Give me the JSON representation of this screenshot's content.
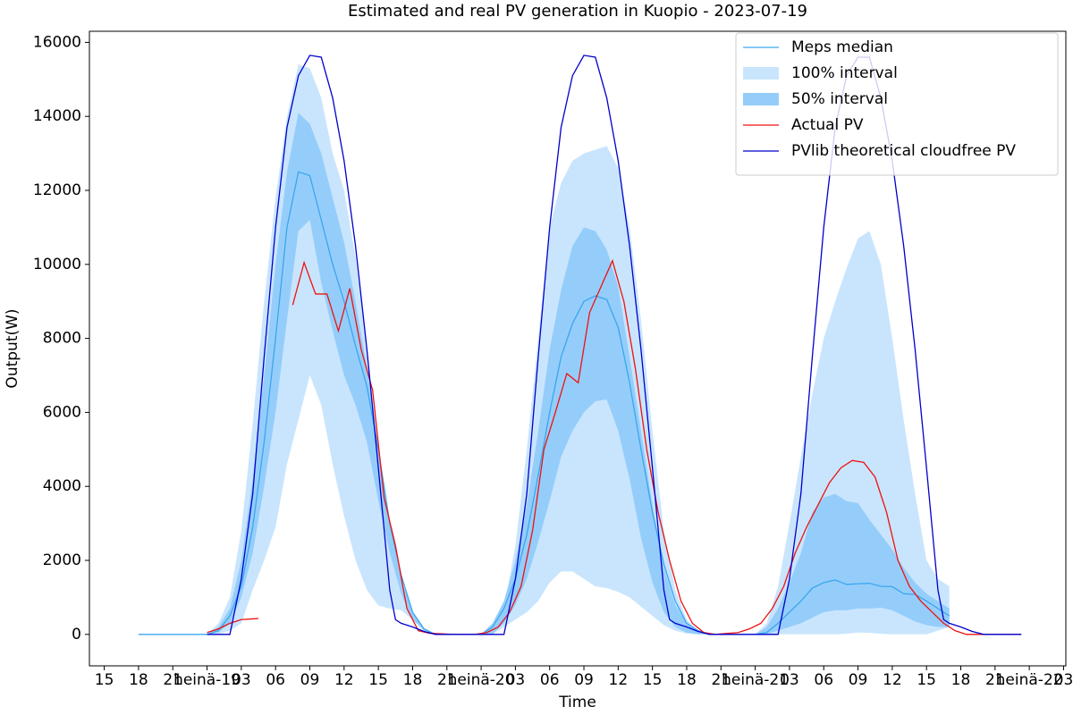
{
  "chart_data": {
    "type": "line",
    "title": "Estimated and real PV generation in Kuopio - 2023-07-19",
    "x_label": "Time",
    "y_label": "Output(W)",
    "xlim": [
      -10.3,
      75.2
    ],
    "ylim": [
      -850,
      16300
    ],
    "yticks": [
      0,
      2000,
      4000,
      6000,
      8000,
      10000,
      12000,
      14000,
      16000
    ],
    "xticks": [
      {
        "value": -9,
        "label": "15"
      },
      {
        "value": -6,
        "label": "18"
      },
      {
        "value": -3,
        "label": "21"
      },
      {
        "value": 0,
        "label": "heinä-19"
      },
      {
        "value": 3,
        "label": "03"
      },
      {
        "value": 6,
        "label": "06"
      },
      {
        "value": 9,
        "label": "09"
      },
      {
        "value": 12,
        "label": "12"
      },
      {
        "value": 15,
        "label": "15"
      },
      {
        "value": 18,
        "label": "18"
      },
      {
        "value": 21,
        "label": "21"
      },
      {
        "value": 24,
        "label": "heinä-20"
      },
      {
        "value": 27,
        "label": "03"
      },
      {
        "value": 30,
        "label": "06"
      },
      {
        "value": 33,
        "label": "09"
      },
      {
        "value": 36,
        "label": "12"
      },
      {
        "value": 39,
        "label": "15"
      },
      {
        "value": 42,
        "label": "18"
      },
      {
        "value": 45,
        "label": "21"
      },
      {
        "value": 48,
        "label": "heinä-21"
      },
      {
        "value": 51,
        "label": "03"
      },
      {
        "value": 54,
        "label": "06"
      },
      {
        "value": 57,
        "label": "09"
      },
      {
        "value": 60,
        "label": "12"
      },
      {
        "value": 63,
        "label": "15"
      },
      {
        "value": 66,
        "label": "18"
      },
      {
        "value": 69,
        "label": "21"
      },
      {
        "value": 72,
        "label": "heinä-22"
      },
      {
        "value": 75,
        "label": "03"
      }
    ],
    "legend": "upper right",
    "x": [
      -6,
      -3,
      0,
      1,
      2,
      3,
      4,
      5,
      6,
      7,
      8,
      9,
      10,
      11,
      12,
      13,
      14,
      15,
      16,
      17,
      18,
      19,
      20,
      24,
      25,
      26,
      27,
      28,
      29,
      30,
      31,
      32,
      33,
      34,
      35,
      36,
      37,
      38,
      39,
      40,
      41,
      42,
      43,
      44,
      48,
      49,
      50,
      51,
      52,
      53,
      54,
      55,
      56,
      57,
      58,
      59,
      60,
      61,
      62,
      63,
      64,
      65
    ],
    "series": [
      {
        "name": "Meps median",
        "type": "line",
        "color": "#3aa6ee",
        "values": [
          0,
          0,
          0,
          100,
          500,
          1300,
          2900,
          5200,
          8000,
          11000,
          12500,
          12400,
          11200,
          10000,
          9000,
          7800,
          6700,
          5000,
          3000,
          1600,
          600,
          150,
          0,
          0,
          200,
          700,
          1500,
          2700,
          4300,
          6000,
          7500,
          8400,
          9000,
          9150,
          9050,
          8300,
          6800,
          5000,
          3300,
          1900,
          900,
          300,
          100,
          0,
          0,
          50,
          300,
          600,
          900,
          1250,
          1400,
          1470,
          1350,
          1370,
          1380,
          1300,
          1290,
          1100,
          1080,
          900,
          700,
          500
        ]
      },
      {
        "name": "100% interval",
        "type": "area",
        "color": "#c9e5fd",
        "low": [
          0,
          0,
          0,
          0,
          100,
          300,
          1200,
          2000,
          2900,
          4600,
          5800,
          7000,
          6200,
          4600,
          3200,
          2000,
          1200,
          780,
          700,
          650,
          400,
          100,
          0,
          0,
          0,
          200,
          400,
          600,
          900,
          1400,
          1700,
          1700,
          1500,
          1300,
          1250,
          1150,
          1000,
          750,
          500,
          250,
          100,
          20,
          0,
          0,
          0,
          0,
          0,
          0,
          0,
          0,
          0,
          0,
          20,
          50,
          40,
          20,
          0,
          0,
          0,
          0,
          100,
          200
        ],
        "high": [
          0,
          0,
          0,
          300,
          1000,
          2800,
          5700,
          9000,
          11800,
          14000,
          15400,
          15300,
          14500,
          13000,
          12000,
          10200,
          7800,
          5000,
          2800,
          1400,
          600,
          100,
          0,
          0,
          100,
          700,
          2400,
          5000,
          8000,
          11000,
          12200,
          12800,
          13000,
          13100,
          13200,
          12600,
          11000,
          8500,
          5500,
          2800,
          1200,
          400,
          100,
          0,
          0,
          300,
          1300,
          3000,
          4800,
          6500,
          8000,
          9000,
          9900,
          10700,
          10900,
          10000,
          8000,
          5800,
          3800,
          2000,
          1500,
          1300
        ]
      },
      {
        "name": "50% interval",
        "type": "area",
        "color": "#95cdfa",
        "low": [
          0,
          0,
          0,
          50,
          300,
          1000,
          2200,
          4000,
          6000,
          8500,
          10900,
          11200,
          9500,
          8200,
          7000,
          6200,
          5200,
          3600,
          2200,
          1100,
          400,
          100,
          0,
          0,
          0,
          300,
          800,
          1500,
          2500,
          3600,
          4800,
          5500,
          6000,
          6300,
          6350,
          5500,
          4200,
          2600,
          1400,
          600,
          200,
          50,
          0,
          0,
          0,
          0,
          100,
          200,
          300,
          450,
          600,
          650,
          650,
          700,
          700,
          720,
          650,
          500,
          350,
          250,
          200,
          200
        ],
        "high": [
          0,
          0,
          0,
          200,
          700,
          2000,
          4200,
          7000,
          10000,
          12500,
          14100,
          13800,
          13000,
          11800,
          10600,
          9000,
          7200,
          5000,
          3000,
          1500,
          600,
          150,
          0,
          0,
          300,
          900,
          2000,
          3500,
          5500,
          7700,
          9300,
          10500,
          11000,
          10900,
          10400,
          9400,
          7500,
          5500,
          3500,
          1800,
          800,
          300,
          100,
          0,
          0,
          200,
          700,
          1400,
          2200,
          3300,
          3700,
          3800,
          3600,
          3550,
          3100,
          2700,
          2300,
          1800,
          1400,
          1100,
          900,
          700
        ]
      },
      {
        "name": "Actual PV",
        "type": "line",
        "color": "#ee1111",
        "x": [
          0,
          1,
          2,
          3,
          4,
          4.5,
          6,
          7.5,
          8.5,
          9.5,
          10.5,
          11.5,
          12.5,
          13.5,
          14.5,
          15.5,
          16.5,
          17.5,
          18.5,
          19.5,
          21.5,
          23.5,
          24.5,
          25.5,
          26.5,
          27.5,
          28.5,
          29.5,
          30.5,
          31.5,
          32.5,
          33.5,
          34.5,
          35.5,
          36.5,
          37.5,
          38.5,
          39.5,
          40.5,
          41.5,
          42.5,
          43.5,
          44.5,
          46.5,
          47.5,
          48.5,
          49.5,
          50.5,
          51.5,
          52.5,
          53.5,
          54.5,
          55.5,
          56.5,
          57.5,
          58.5,
          59.5,
          60.5,
          61.5,
          62.5,
          63.5,
          64.5,
          65.5,
          66.5,
          71.3
        ],
        "values": [
          50,
          150,
          300,
          400,
          420,
          430,
          null,
          8900,
          10050,
          9200,
          9200,
          8200,
          9350,
          7700,
          6600,
          3700,
          2400,
          700,
          100,
          30,
          0,
          0,
          50,
          200,
          600,
          1300,
          2800,
          5000,
          6000,
          7050,
          6800,
          8700,
          9400,
          10100,
          9000,
          7200,
          5000,
          3300,
          2000,
          900,
          300,
          50,
          0,
          50,
          150,
          300,
          700,
          1300,
          2200,
          2900,
          3500,
          4100,
          4500,
          4700,
          4650,
          4250,
          3300,
          2000,
          1300,
          900,
          600,
          300,
          100,
          0,
          0
        ]
      },
      {
        "name": "PVlib theoretical cloudfree PV",
        "type": "line",
        "color": "#0000cc",
        "x": [
          0,
          2,
          3,
          4,
          5,
          6,
          7,
          8,
          9,
          10,
          11,
          12,
          13,
          14,
          15,
          16,
          16.5,
          17,
          18,
          19,
          20,
          26,
          27,
          28,
          29,
          30,
          31,
          32,
          33,
          34,
          35,
          36,
          37,
          38,
          39,
          40,
          40.5,
          41,
          42,
          43,
          44,
          50,
          51,
          52,
          53,
          54,
          55,
          56,
          57,
          58,
          59,
          60,
          61,
          62,
          63,
          64,
          64.5,
          65,
          66,
          67,
          68,
          71.3
        ],
        "values": [
          0,
          0,
          1500,
          3800,
          7500,
          11000,
          13700,
          15100,
          15650,
          15600,
          14500,
          12800,
          10500,
          7700,
          4500,
          1200,
          400,
          300,
          200,
          80,
          0,
          0,
          1500,
          3800,
          7500,
          11000,
          13700,
          15100,
          15650,
          15600,
          14500,
          12800,
          10500,
          7700,
          4500,
          1200,
          400,
          300,
          200,
          80,
          0,
          0,
          1500,
          3800,
          7500,
          11000,
          13700,
          15100,
          15600,
          15600,
          14500,
          12800,
          10500,
          7700,
          4500,
          1200,
          400,
          300,
          200,
          80,
          0,
          0
        ]
      }
    ]
  }
}
